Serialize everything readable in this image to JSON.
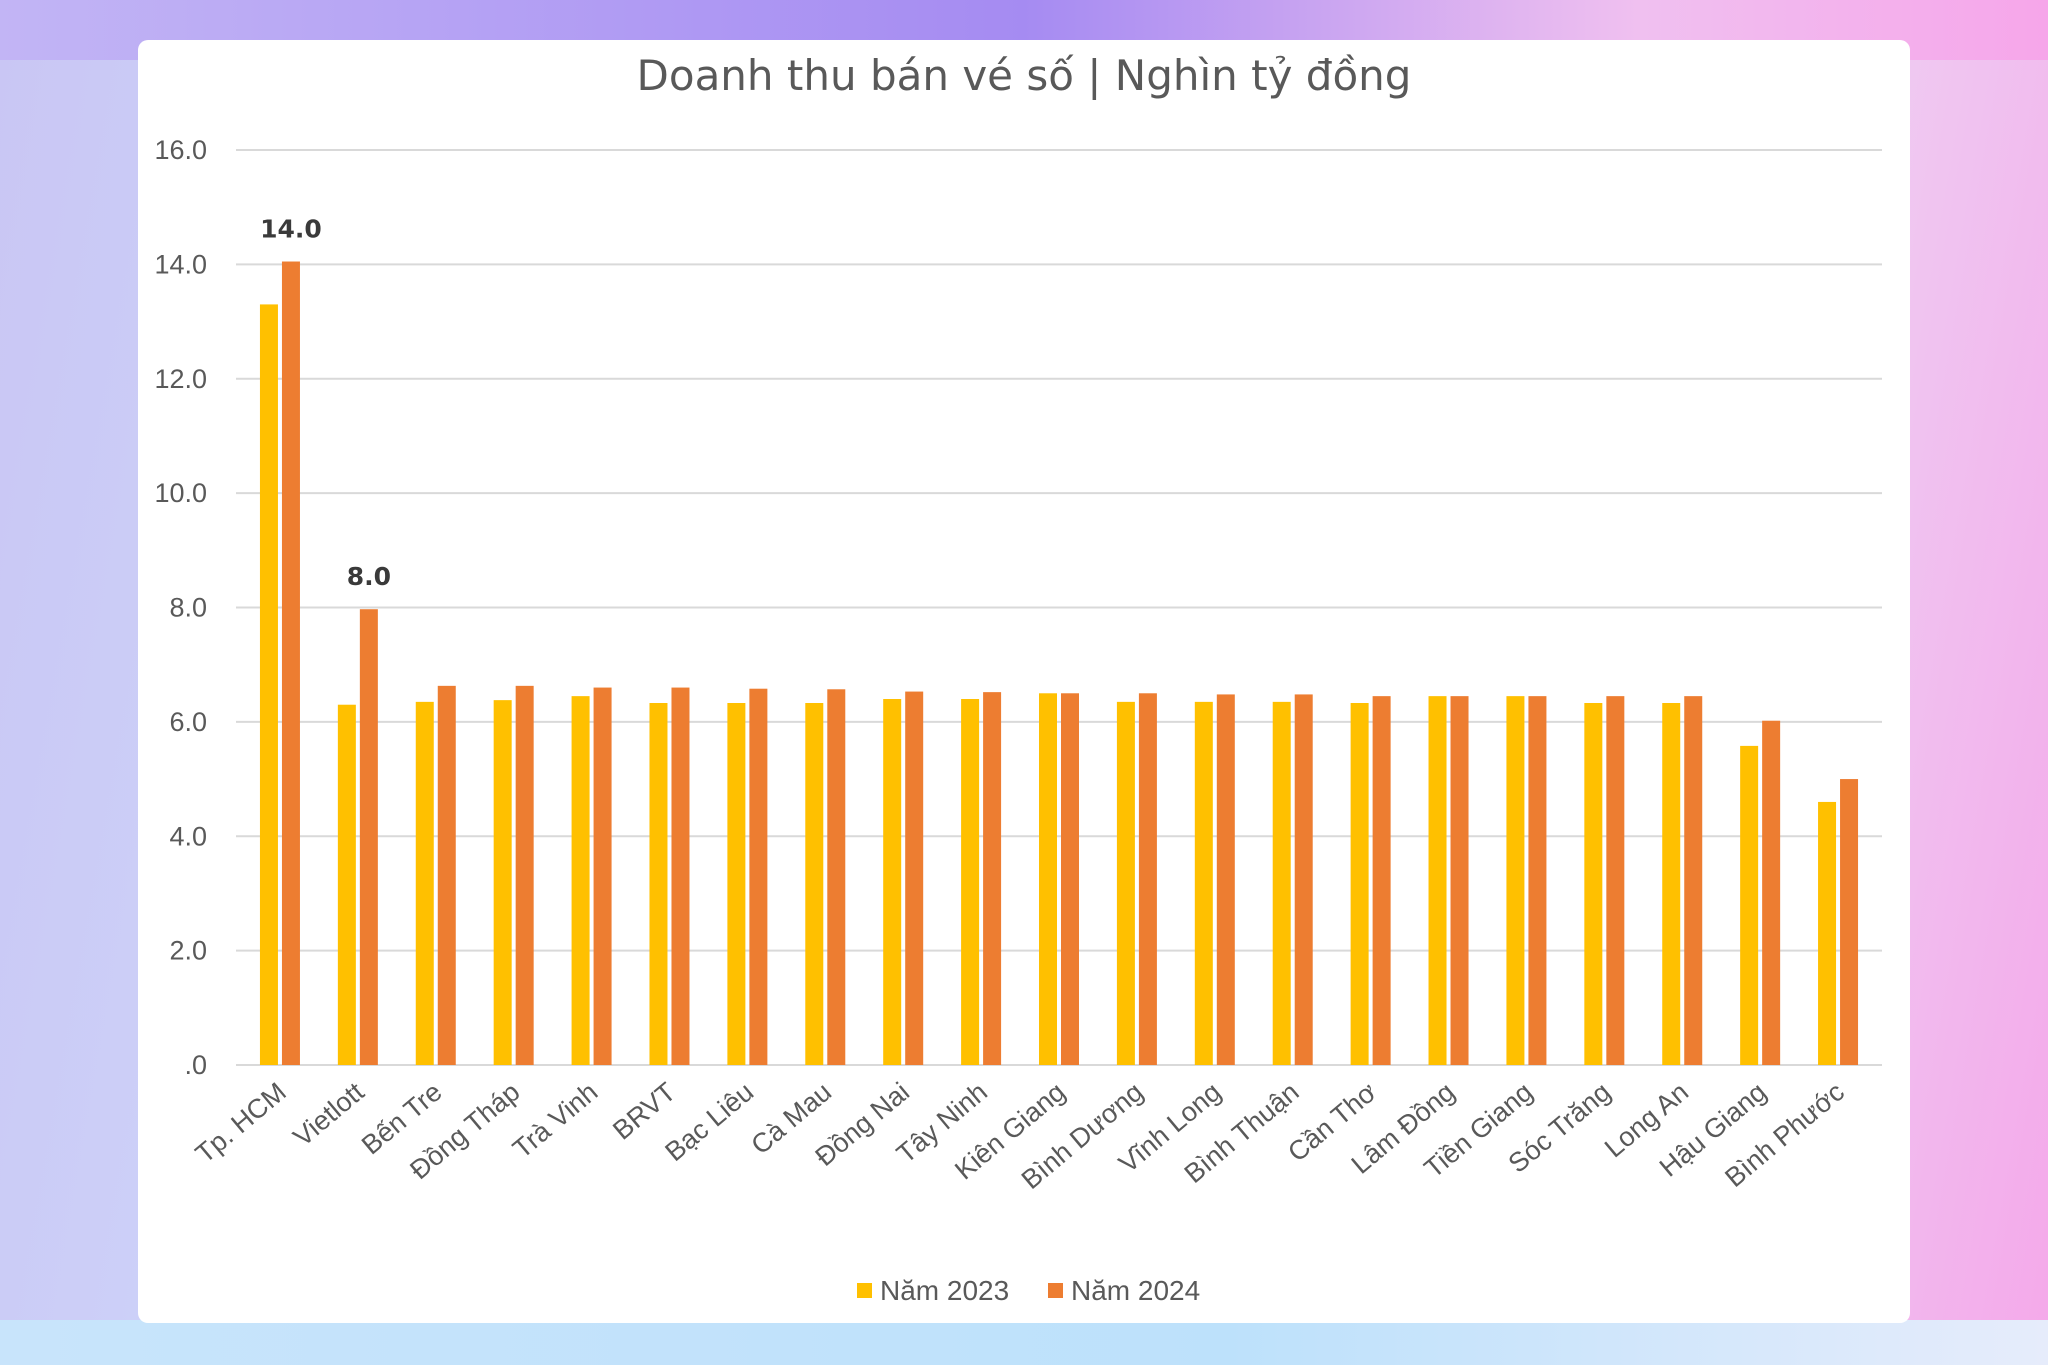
{
  "chart_data": {
    "type": "bar",
    "title": "Doanh thu bán vé số | Nghìn tỷ đồng",
    "xlabel": "",
    "ylabel": "",
    "ylim": [
      0,
      16
    ],
    "yticks": [
      ".0",
      "2.0",
      "4.0",
      "6.0",
      "8.0",
      "10.0",
      "12.0",
      "14.0",
      "16.0"
    ],
    "grid": true,
    "legend_position": "bottom",
    "categories": [
      "Tp. HCM",
      "Vietlott",
      "Bến Tre",
      "Đồng Tháp",
      "Trà Vinh",
      "BRVT",
      "Bạc Liêu",
      "Cà Mau",
      "Đồng Nai",
      "Tây Ninh",
      "Kiên Giang",
      "Bình Dương",
      "Vĩnh Long",
      "Bình Thuận",
      "Cần Thơ",
      "Lâm Đồng",
      "Tiền Giang",
      "Sóc Trăng",
      "Long An",
      "Hậu Giang",
      "Bình Phước"
    ],
    "series": [
      {
        "name": "Năm 2023",
        "color": "#FFC000",
        "values": [
          13.3,
          6.3,
          6.35,
          6.38,
          6.45,
          6.33,
          6.33,
          6.33,
          6.4,
          6.4,
          6.5,
          6.35,
          6.35,
          6.35,
          6.33,
          6.45,
          6.45,
          6.33,
          6.33,
          5.58,
          4.6
        ]
      },
      {
        "name": "Năm 2024",
        "color": "#ED7D31",
        "values": [
          14.05,
          7.97,
          6.63,
          6.63,
          6.6,
          6.6,
          6.58,
          6.57,
          6.53,
          6.52,
          6.5,
          6.5,
          6.48,
          6.48,
          6.45,
          6.45,
          6.45,
          6.45,
          6.45,
          6.02,
          5.0
        ]
      }
    ],
    "data_labels": [
      {
        "category": "Tp. HCM",
        "series": "Năm 2024",
        "text": "14.0"
      },
      {
        "category": "Vietlott",
        "series": "Năm 2024",
        "text": "8.0"
      }
    ]
  }
}
